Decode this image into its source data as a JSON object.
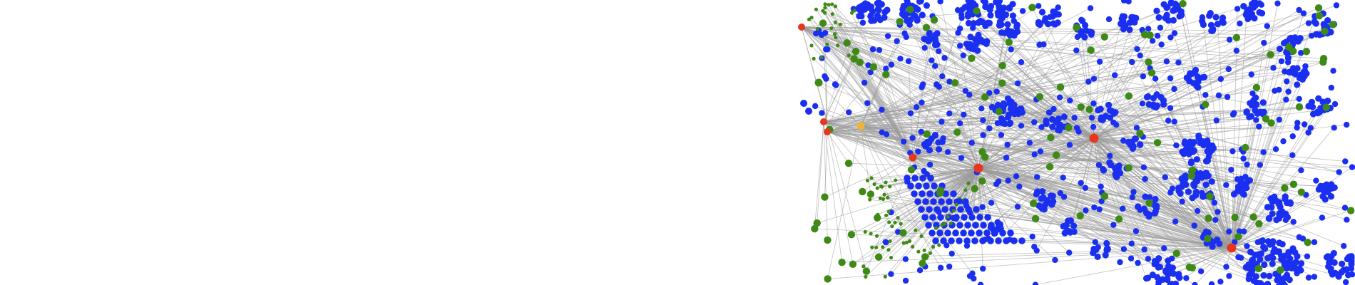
{
  "graph": {
    "type": "network",
    "node_colors": {
      "blue": "#1a2ff0",
      "green": "#3f8a16",
      "red": "#e8361e",
      "orange": "#f0b437"
    },
    "edge_color": "#9a9a9a",
    "background": "#ffffff",
    "labels": []
  }
}
